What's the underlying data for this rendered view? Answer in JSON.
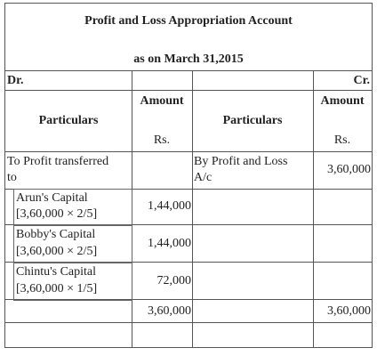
{
  "title": "Profit and Loss Appropriation Account",
  "subtitle": "as on March 31,2015",
  "dr_label": "Dr.",
  "cr_label": "Cr.",
  "headers": {
    "amount": "Amount",
    "particulars": "Particulars",
    "rs": "Rs."
  },
  "left": {
    "row1_line1": "To Profit transferred",
    "row1_line2": "to",
    "items": [
      {
        "name": "Arun's Capital",
        "calc": "[3,60,000 × 2/5]",
        "amount": "1,44,000"
      },
      {
        "name": "Bobby's Capital",
        "calc": "[3,60,000 × 2/5]",
        "amount": "1,44,000"
      },
      {
        "name": "Chintu's Capital",
        "calc": "[3,60,000 × 1/5]",
        "amount": "72,000"
      }
    ],
    "total": "3,60,000"
  },
  "right": {
    "row1_line1": "By Profit and Loss",
    "row1_line2": "A/c",
    "row1_amount": "3,60,000",
    "total": "3,60,000"
  }
}
